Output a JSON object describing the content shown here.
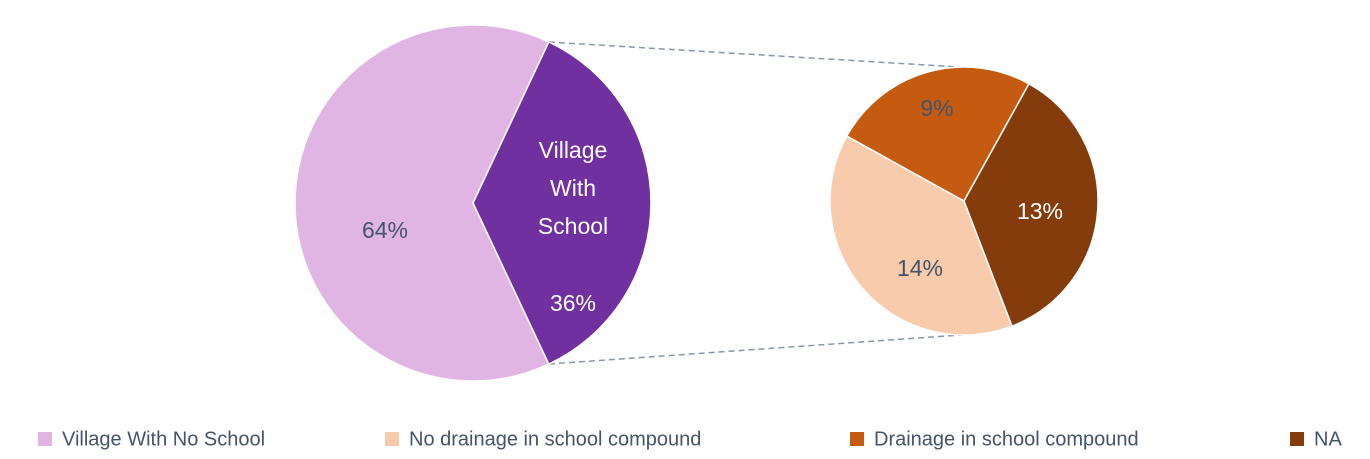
{
  "chart_data": {
    "type": "pie-of-pie",
    "categories": [
      "Village With No School",
      "Village With School"
    ],
    "values": [
      64,
      36
    ],
    "value_labels": [
      "64%",
      "36%"
    ],
    "colors": [
      "#e1b5e3",
      "#7030a0"
    ],
    "secondary": {
      "categories": [
        "No drainage in school compound",
        "Drainage in school compound",
        "NA"
      ],
      "values": [
        14,
        9,
        13
      ],
      "value_labels": [
        "14%",
        "9%",
        "13%"
      ],
      "colors": [
        "#f8cbad",
        "#c55a11",
        "#843c0c"
      ]
    },
    "legend": "bottom"
  }
}
